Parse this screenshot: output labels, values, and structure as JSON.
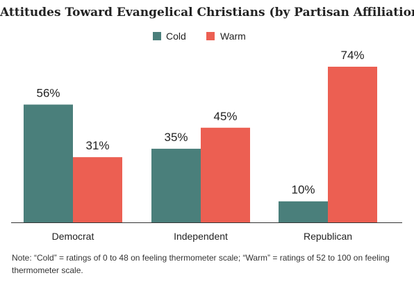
{
  "colors": {
    "cold": "#4a7f7b",
    "warm": "#ec5f52",
    "axis": "#333333",
    "text": "#222222"
  },
  "chart_data": {
    "type": "bar",
    "title": "Attitudes Toward Evangelical Christians (by Partisan Affiliation)",
    "categories": [
      "Democrat",
      "Independent",
      "Republican"
    ],
    "series": [
      {
        "name": "Cold",
        "values": [
          56,
          35,
          10
        ],
        "labels": [
          "56%",
          "35%",
          "10%"
        ]
      },
      {
        "name": "Warm",
        "values": [
          31,
          45,
          74
        ],
        "labels": [
          "31%",
          "45%",
          "74%"
        ]
      }
    ],
    "unit": "%",
    "ylim": [
      0,
      80
    ],
    "grid": false,
    "legend_position": "top-center",
    "note": "Note: “Cold” = ratings of 0 to 48 on feeling thermometer scale; “Warm” = ratings of 52 to 100 on feeling thermometer scale."
  }
}
